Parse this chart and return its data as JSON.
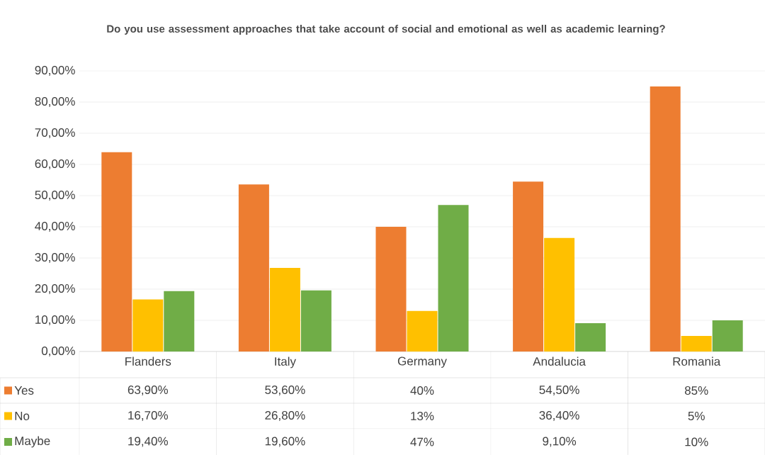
{
  "chart_data": {
    "type": "bar",
    "title": "Do you use assessment approaches that take account of social and emotional as well as academic learning?",
    "categories": [
      "Flanders",
      "Italy",
      "Germany",
      "Andalucia",
      "Romania"
    ],
    "series": [
      {
        "name": "Yes",
        "color": "#ed7d31",
        "values": [
          63.9,
          53.6,
          40,
          54.5,
          85
        ],
        "value_labels": [
          "63,90%",
          "53,60%",
          "40%",
          "54,50%",
          "85%"
        ]
      },
      {
        "name": "No",
        "color": "#ffc000",
        "values": [
          16.7,
          26.8,
          13,
          36.4,
          5
        ],
        "value_labels": [
          "16,70%",
          "26,80%",
          "13%",
          "36,40%",
          "5%"
        ]
      },
      {
        "name": "Maybe",
        "color": "#70ad47",
        "values": [
          19.4,
          19.6,
          47,
          9.1,
          10
        ],
        "value_labels": [
          "19,40%",
          "19,60%",
          "47%",
          "9,10%",
          "10%"
        ]
      }
    ],
    "ylim": [
      0,
      90
    ],
    "yticks": [
      {
        "value": 0,
        "label": "0,00%"
      },
      {
        "value": 10,
        "label": "10,00%"
      },
      {
        "value": 20,
        "label": "20,00%"
      },
      {
        "value": 30,
        "label": "30,00%"
      },
      {
        "value": 40,
        "label": "40,00%"
      },
      {
        "value": 50,
        "label": "50,00%"
      },
      {
        "value": 60,
        "label": "60,00%"
      },
      {
        "value": 70,
        "label": "70,00%"
      },
      {
        "value": 80,
        "label": "80,00%"
      },
      {
        "value": 90,
        "label": "90,00%"
      }
    ],
    "grid": "y",
    "legend": "bottom"
  }
}
